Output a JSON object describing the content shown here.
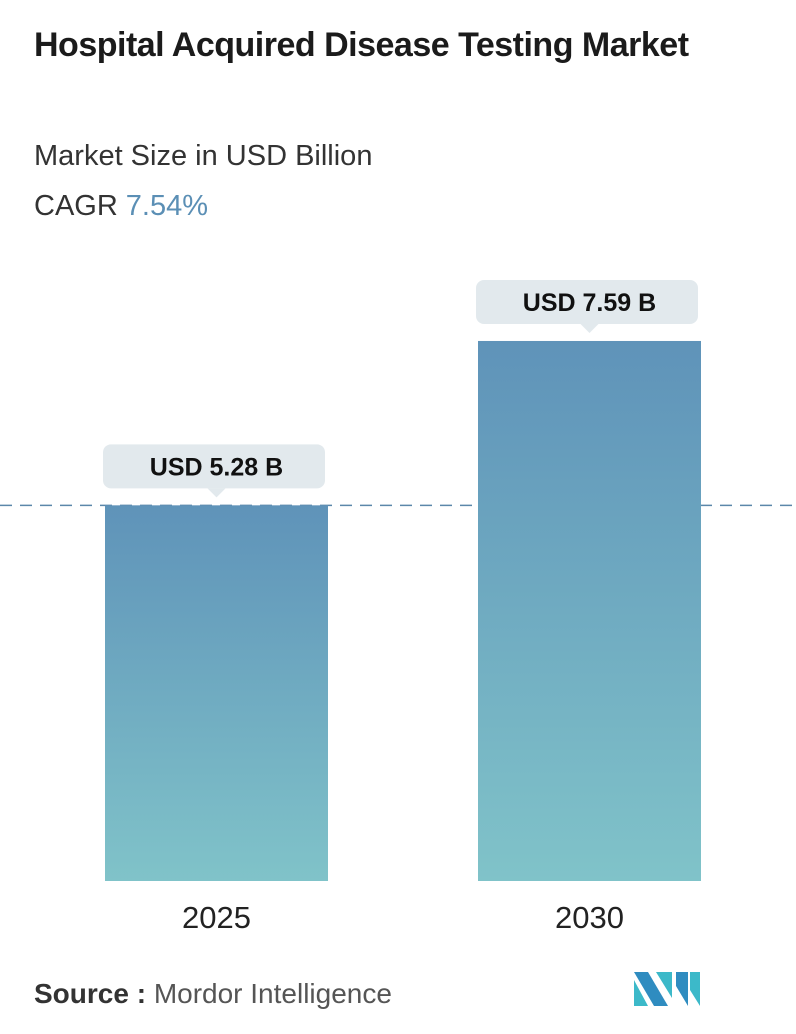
{
  "title": "Hospital Acquired Disease Testing Market",
  "subtitle": "Market Size in USD Billion",
  "cagr_label": "CAGR",
  "cagr_value": "7.54%",
  "source_label": "Source :",
  "source_value": "Mordor Intelligence",
  "logo_text": "Mordor Intelligence",
  "colors": {
    "bar_top": "#5f93b9",
    "bar_bottom": "#80c3c9",
    "label_box": "#e2e9ed",
    "dashed_line": "#5b87aa",
    "cagr": "#5b8fb5"
  },
  "chart_data": {
    "type": "bar",
    "categories": [
      "2025",
      "2030"
    ],
    "values": [
      5.28,
      7.59
    ],
    "data_labels": [
      "USD 5.28 B",
      "USD 7.59 B"
    ],
    "title": "Hospital Acquired Disease Testing Market",
    "ylabel": "Market Size in USD Billion",
    "reference_line": 5.28,
    "grid": false
  }
}
